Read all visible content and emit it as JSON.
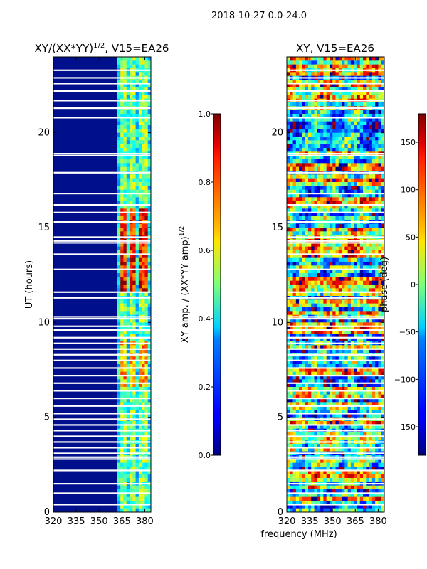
{
  "figure": {
    "suptitle": "2018-10-27 0.0-24.0",
    "xlabel": "frequency (MHz)"
  },
  "chart_data": [
    {
      "type": "heatmap",
      "title_main": "XY/(XX*YY)",
      "title_sup": "1/2",
      "title_tail": ", V15=EA26",
      "ylabel": "UT (hours)",
      "x": {
        "ticks": [
          320,
          335,
          350,
          365,
          380
        ],
        "lim": [
          320,
          384
        ]
      },
      "y": {
        "ticks": [
          0,
          5,
          10,
          15,
          20
        ],
        "lim": [
          0,
          24
        ]
      },
      "colorbar": {
        "label_main": "XY amp. / (XX*YY amp)",
        "label_sup": "1/2",
        "ticks": [
          "0.0",
          "0.2",
          "0.4",
          "0.6",
          "0.8",
          "1.0"
        ],
        "lim": [
          0,
          1
        ],
        "cmap": "jet"
      }
    },
    {
      "type": "heatmap",
      "title_main": "XY, V15=EA26",
      "ylabel": "",
      "x": {
        "ticks": [
          320,
          335,
          350,
          365,
          380
        ],
        "lim": [
          320,
          384
        ]
      },
      "y": {
        "ticks": [
          0,
          5,
          10,
          15,
          20
        ],
        "lim": [
          0,
          24
        ]
      },
      "colorbar": {
        "label_main": "phase (deg)",
        "ticks": [
          "−150",
          "−100",
          "−50",
          "0",
          "50",
          "100",
          "150"
        ],
        "lim": [
          -180,
          180
        ],
        "cmap": "jet"
      }
    }
  ]
}
